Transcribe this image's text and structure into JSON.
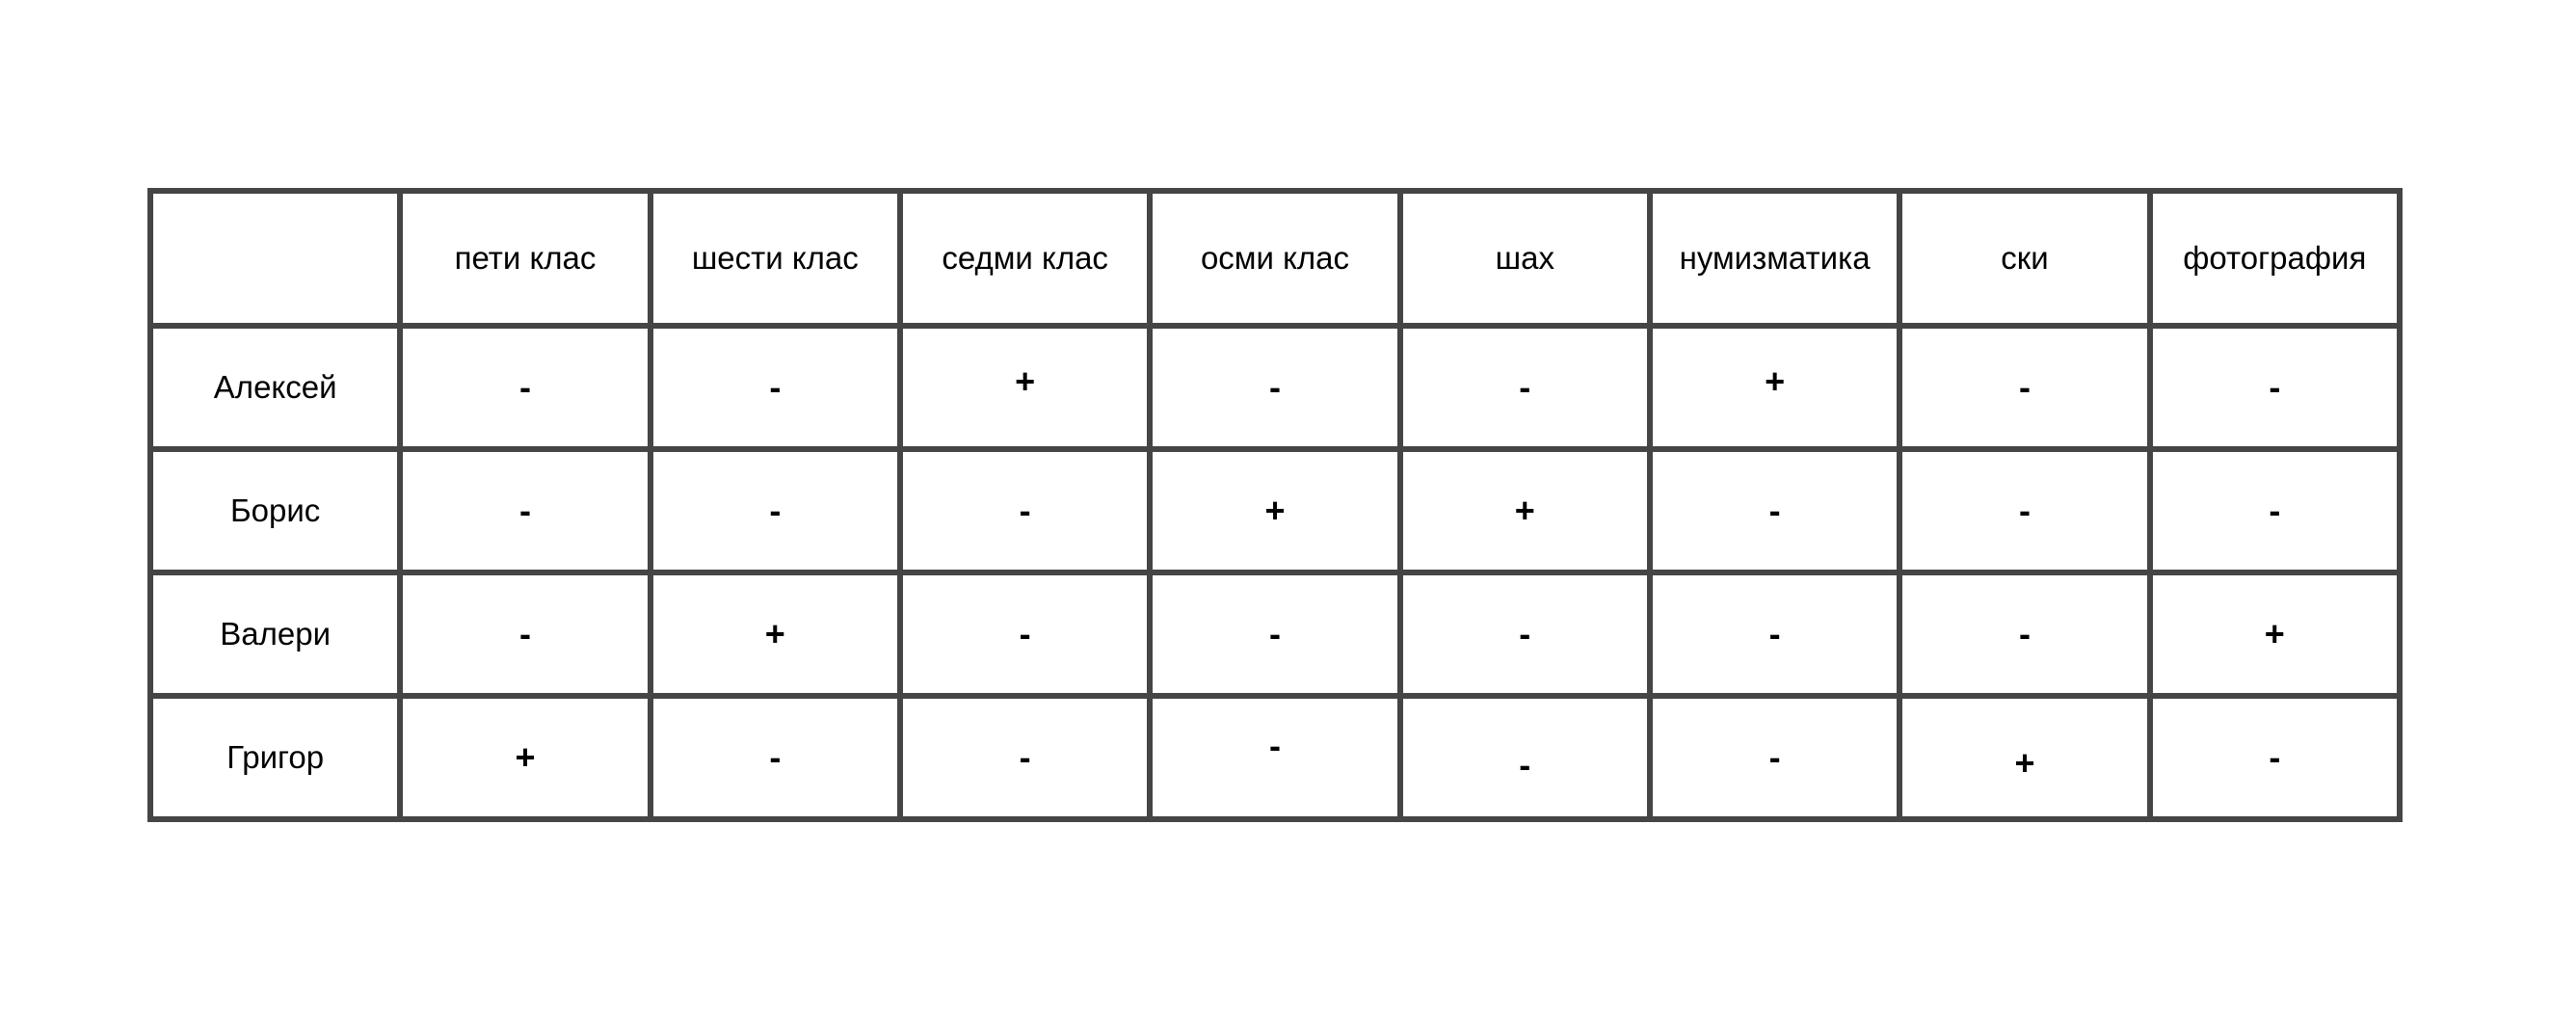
{
  "colors": {
    "border": "#454545",
    "text": "#000000",
    "background": "#ffffff"
  },
  "table": {
    "columns": [
      "",
      "пети клас",
      "шести клас",
      "седми клас",
      "осми клас",
      "шах",
      "нумизматика",
      "ски",
      "фотография"
    ],
    "rows": [
      {
        "name": "Алексей",
        "cells": [
          "-",
          "-",
          "+",
          "-",
          "-",
          "+",
          "-",
          "-"
        ]
      },
      {
        "name": "Борис",
        "cells": [
          "-",
          "-",
          "-",
          "+",
          "+",
          "-",
          "-",
          "-"
        ]
      },
      {
        "name": "Валери",
        "cells": [
          "-",
          "+",
          "-",
          "-",
          "-",
          "-",
          "-",
          "+"
        ]
      },
      {
        "name": "Григор",
        "cells": [
          "+",
          "-",
          "-",
          "-",
          "-",
          "-",
          "+",
          "-"
        ]
      }
    ]
  }
}
